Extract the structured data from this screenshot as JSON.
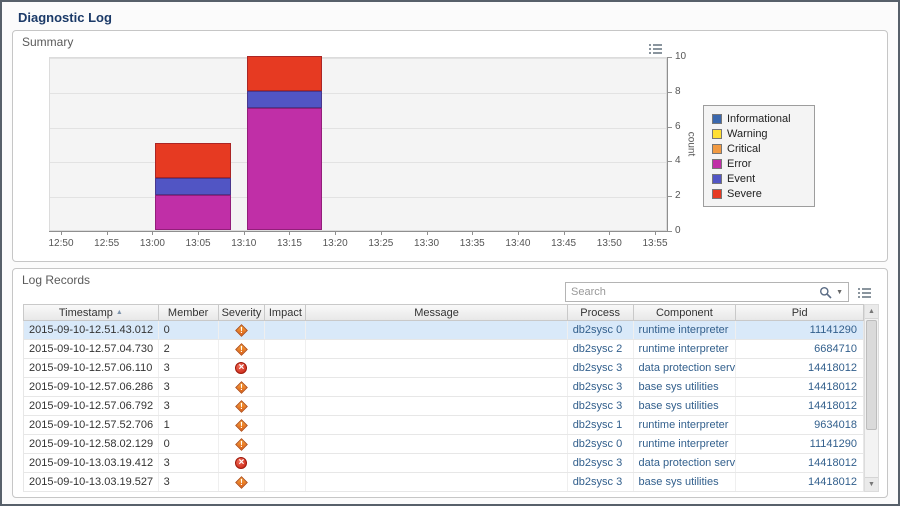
{
  "page": {
    "title": "Diagnostic Log"
  },
  "summary": {
    "title": "Summary"
  },
  "chart_data": {
    "type": "bar",
    "stacked": true,
    "title": "",
    "xlabel": "",
    "ylabel": "count",
    "ylim": [
      0,
      10
    ],
    "yticks": [
      0,
      2,
      4,
      6,
      8,
      10
    ],
    "x_ticklabels": [
      "12:50",
      "12:55",
      "13:00",
      "13:05",
      "13:10",
      "13:15",
      "13:20",
      "13:25",
      "13:30",
      "13:35",
      "13:40",
      "13:45",
      "13:50",
      "13:55"
    ],
    "legend_position": "right",
    "legend": [
      {
        "label": "Informational",
        "color": "#3a67ad"
      },
      {
        "label": "Warning",
        "color": "#ffdf33"
      },
      {
        "label": "Critical",
        "color": "#f19a42"
      },
      {
        "label": "Error",
        "color": "#c02fa7"
      },
      {
        "label": "Event",
        "color": "#5155c4"
      },
      {
        "label": "Severe",
        "color": "#e63a22"
      }
    ],
    "bars": [
      {
        "from": "13:00",
        "to": "13:10",
        "total": 5,
        "segments": [
          {
            "name": "Error",
            "value": 2
          },
          {
            "name": "Event",
            "value": 1
          },
          {
            "name": "Severe",
            "value": 2
          }
        ]
      },
      {
        "from": "13:10",
        "to": "13:20",
        "total": 10,
        "segments": [
          {
            "name": "Error",
            "value": 7
          },
          {
            "name": "Event",
            "value": 1
          },
          {
            "name": "Severe",
            "value": 2
          }
        ]
      }
    ]
  },
  "log_records": {
    "title": "Log Records",
    "search_placeholder": "Search",
    "columns": [
      {
        "label": "Timestamp",
        "sort": "asc"
      },
      {
        "label": "Member"
      },
      {
        "label": "Severity"
      },
      {
        "label": "Impact"
      },
      {
        "label": "Message"
      },
      {
        "label": "Process"
      },
      {
        "label": "Component"
      },
      {
        "label": "Pid"
      }
    ],
    "rows": [
      {
        "timestamp": "2015-09-10-12.51.43.012",
        "member": "0",
        "severity": "warning",
        "impact": "",
        "message": "",
        "process": "db2sysc 0",
        "component": "runtime interpreter",
        "pid": "11141290",
        "selected": true
      },
      {
        "timestamp": "2015-09-10-12.57.04.730",
        "member": "2",
        "severity": "warning",
        "impact": "",
        "message": "",
        "process": "db2sysc 2",
        "component": "runtime interpreter",
        "pid": "6684710",
        "selected": false
      },
      {
        "timestamp": "2015-09-10-12.57.06.110",
        "member": "3",
        "severity": "error",
        "impact": "",
        "message": "",
        "process": "db2sysc 3",
        "component": "data protection services",
        "pid": "14418012",
        "selected": false
      },
      {
        "timestamp": "2015-09-10-12.57.06.286",
        "member": "3",
        "severity": "warning",
        "impact": "",
        "message": "",
        "process": "db2sysc 3",
        "component": "base sys utilities",
        "pid": "14418012",
        "selected": false
      },
      {
        "timestamp": "2015-09-10-12.57.06.792",
        "member": "3",
        "severity": "warning",
        "impact": "",
        "message": "",
        "process": "db2sysc 3",
        "component": "base sys utilities",
        "pid": "14418012",
        "selected": false
      },
      {
        "timestamp": "2015-09-10-12.57.52.706",
        "member": "1",
        "severity": "warning",
        "impact": "",
        "message": "",
        "process": "db2sysc 1",
        "component": "runtime interpreter",
        "pid": "9634018",
        "selected": false
      },
      {
        "timestamp": "2015-09-10-12.58.02.129",
        "member": "0",
        "severity": "warning",
        "impact": "",
        "message": "",
        "process": "db2sysc 0",
        "component": "runtime interpreter",
        "pid": "11141290",
        "selected": false
      },
      {
        "timestamp": "2015-09-10-13.03.19.412",
        "member": "3",
        "severity": "error",
        "impact": "",
        "message": "",
        "process": "db2sysc 3",
        "component": "data protection services",
        "pid": "14418012",
        "selected": false
      },
      {
        "timestamp": "2015-09-10-13.03.19.527",
        "member": "3",
        "severity": "warning",
        "impact": "",
        "message": "",
        "process": "db2sysc 3",
        "component": "base sys utilities",
        "pid": "14418012",
        "selected": false
      }
    ]
  }
}
